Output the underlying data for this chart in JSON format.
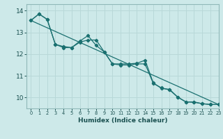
{
  "xlabel": "Humidex (Indice chaleur)",
  "background_color": "#cde9e9",
  "grid_color": "#b8d8d8",
  "line_color": "#1a7070",
  "xlim": [
    -0.5,
    23
  ],
  "ylim": [
    9.5,
    14.3
  ],
  "xticks": [
    0,
    1,
    2,
    3,
    4,
    5,
    6,
    7,
    8,
    9,
    10,
    11,
    12,
    13,
    14,
    15,
    16,
    17,
    18,
    19,
    20,
    21,
    22,
    23
  ],
  "yticks": [
    10,
    11,
    12,
    13,
    14
  ],
  "line1_x": [
    0,
    1,
    2,
    3,
    4,
    5,
    6,
    7,
    8,
    9,
    10,
    11,
    12,
    13,
    14,
    15,
    16,
    17,
    18,
    19,
    20,
    21,
    22,
    23
  ],
  "line1_y": [
    13.55,
    13.85,
    13.6,
    12.45,
    12.3,
    12.3,
    12.6,
    12.85,
    12.4,
    12.1,
    11.55,
    11.5,
    11.5,
    11.55,
    11.55,
    10.65,
    10.45,
    10.35,
    10.02,
    9.8,
    9.8,
    9.72,
    9.68,
    9.68
  ],
  "line2_x": [
    0,
    1,
    2,
    3,
    4,
    5,
    6,
    7,
    8,
    9,
    10,
    11,
    12,
    13,
    14,
    15,
    16,
    17,
    18,
    19,
    20,
    21,
    22,
    23
  ],
  "line2_y": [
    13.55,
    13.85,
    13.6,
    12.45,
    12.35,
    12.3,
    12.55,
    12.65,
    12.65,
    12.1,
    11.55,
    11.55,
    11.55,
    11.58,
    11.72,
    10.68,
    10.42,
    10.38,
    10.02,
    9.8,
    9.78,
    9.72,
    9.68,
    9.68
  ],
  "line3_x": [
    0,
    23
  ],
  "line3_y": [
    13.55,
    9.68
  ]
}
